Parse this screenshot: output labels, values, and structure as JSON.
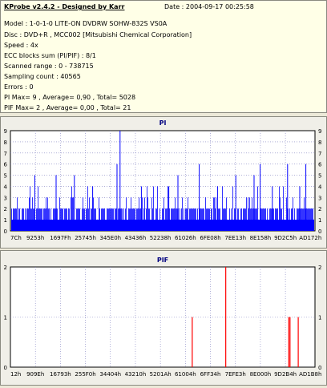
{
  "header": {
    "title": "KProbe v2.4.2 - Designed by Karr",
    "date": "Date : 2004-09-17 00:25:58"
  },
  "info_lines": [
    "Model : 1-0-1-0 LITE-ON DVDRW SOHW-832S  VS0A",
    "Disc : DVD+R , MCC002 [Mitsubishi Chemical Corporation]",
    "Speed : 4x",
    "ECC blocks sum (PI/PIF) : 8/1",
    "Scanned range : 0 - 738715",
    "Sampling count : 40565",
    "Errors : 0",
    "PI Max= 9 , Average= 0,90 , Total= 5028",
    "PIF Max= 2 , Average= 0,00 , Total= 21"
  ],
  "colors": {
    "pi": "#0000ff",
    "pif": "#ff0000",
    "grid": "#8080c0",
    "title": "#000080"
  },
  "chart_data": [
    {
      "type": "bar",
      "title": "PI",
      "ylim": [
        0,
        9
      ],
      "y_ticks": [
        "0",
        "1",
        "2",
        "3",
        "4",
        "5",
        "6",
        "7",
        "8",
        "9"
      ],
      "x_ticks": [
        "7Ch",
        "9253h",
        "1697Fh",
        "25745h",
        "345E0h",
        "43436h",
        "52238h",
        "61026h",
        "6FE08h",
        "7EE13h",
        "8E158h",
        "9D2C5h",
        "AD172h"
      ],
      "grid": true,
      "baseline": 2,
      "peaks": [
        {
          "x": 0.36,
          "y": 9
        },
        {
          "x": 0.08,
          "y": 5
        },
        {
          "x": 0.15,
          "y": 5
        },
        {
          "x": 0.21,
          "y": 5
        },
        {
          "x": 0.27,
          "y": 4
        },
        {
          "x": 0.35,
          "y": 6
        },
        {
          "x": 0.43,
          "y": 4
        },
        {
          "x": 0.52,
          "y": 4
        },
        {
          "x": 0.55,
          "y": 5
        },
        {
          "x": 0.62,
          "y": 6
        },
        {
          "x": 0.68,
          "y": 4
        },
        {
          "x": 0.74,
          "y": 5
        },
        {
          "x": 0.8,
          "y": 5
        },
        {
          "x": 0.82,
          "y": 6
        },
        {
          "x": 0.86,
          "y": 4
        },
        {
          "x": 0.91,
          "y": 6
        },
        {
          "x": 0.95,
          "y": 4
        },
        {
          "x": 0.97,
          "y": 6
        }
      ]
    },
    {
      "type": "bar",
      "title": "PIF",
      "ylim": [
        0,
        2
      ],
      "y_ticks": [
        "0",
        "1",
        "2"
      ],
      "x_ticks": [
        "12h",
        "909Eh",
        "16793h",
        "255F0h",
        "34404h",
        "43210h",
        "5201Ah",
        "61004h",
        "6FF34h",
        "7EFE3h",
        "8E000h",
        "9D2B4h",
        "AD1B8h"
      ],
      "grid": true,
      "bars": [
        {
          "x": 0.597,
          "y": 1
        },
        {
          "x": 0.707,
          "y": 2
        },
        {
          "x": 0.914,
          "y": 1
        },
        {
          "x": 0.918,
          "y": 1
        },
        {
          "x": 0.945,
          "y": 1
        }
      ]
    }
  ]
}
